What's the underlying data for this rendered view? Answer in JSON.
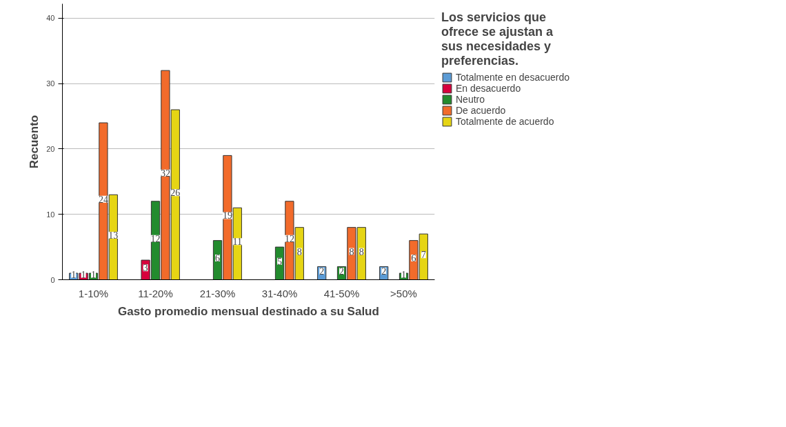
{
  "chart_data": {
    "type": "bar",
    "xlabel": "Gasto promedio mensual destinado a su Salud",
    "ylabel": "Recuento",
    "legend_title": "Los servicios que ofrece se ajustan a sus necesidades y preferencias.",
    "categories": [
      "1-10%",
      "11-20%",
      "21-30%",
      "31-40%",
      "41-50%",
      ">50%"
    ],
    "series": [
      {
        "name": "Totalmente en desacuerdo",
        "color": "#5b9bd5",
        "values": [
          1,
          null,
          null,
          null,
          2,
          2
        ]
      },
      {
        "name": "En desacuerdo",
        "color": "#d7003c",
        "values": [
          1,
          3,
          null,
          null,
          null,
          null
        ]
      },
      {
        "name": "Neutro",
        "color": "#238b2e",
        "values": [
          1,
          12,
          6,
          5,
          2,
          1
        ]
      },
      {
        "name": "De acuerdo",
        "color": "#f26b2b",
        "values": [
          24,
          32,
          19,
          12,
          8,
          6
        ]
      },
      {
        "name": "Totalmente de acuerdo",
        "color": "#e6d514",
        "values": [
          13,
          26,
          11,
          8,
          8,
          7
        ]
      }
    ],
    "ylim": [
      0,
      42.2
    ],
    "yticks": [
      0,
      10,
      20,
      30,
      40
    ],
    "grid": "y",
    "legend": "right",
    "data_labels": true
  }
}
